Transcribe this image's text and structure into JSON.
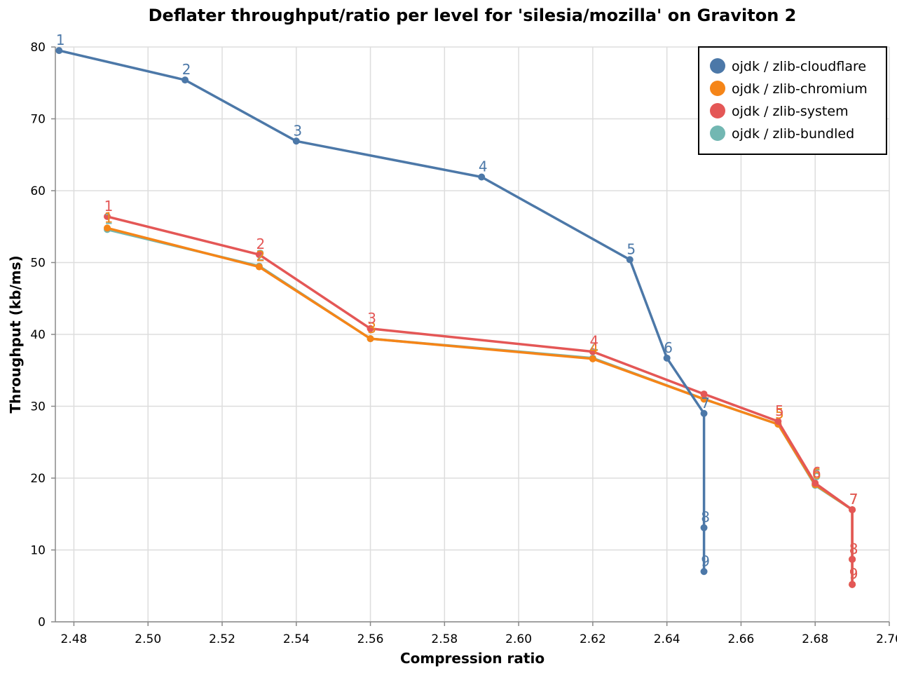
{
  "chart_data": {
    "type": "line",
    "title": "Deflater throughput/ratio per level for 'silesia/mozilla' on Graviton 2",
    "xlabel": "Compression ratio",
    "ylabel": "Throughput (kb/ms)",
    "xlim": [
      2.475,
      2.7
    ],
    "ylim": [
      0,
      80
    ],
    "xticks": [
      2.48,
      2.5,
      2.52,
      2.54,
      2.56,
      2.58,
      2.6,
      2.62,
      2.64,
      2.66,
      2.68,
      2.7
    ],
    "xtick_labels": [
      "2.48",
      "2.50",
      "2.52",
      "2.54",
      "2.56",
      "2.58",
      "2.60",
      "2.62",
      "2.64",
      "2.66",
      "2.68",
      "2.70"
    ],
    "yticks": [
      0,
      10,
      20,
      30,
      40,
      50,
      60,
      70,
      80
    ],
    "ytick_labels": [
      "0",
      "10",
      "20",
      "30",
      "40",
      "50",
      "60",
      "70",
      "80"
    ],
    "grid": true,
    "legend_position": "top-right",
    "series": [
      {
        "name": "ojdk / zlib-bundled",
        "color": "#72b7b2",
        "x": [
          2.489,
          2.53,
          2.56,
          2.62,
          2.65,
          2.67,
          2.68,
          2.69,
          2.69,
          2.69
        ],
        "y": [
          54.6,
          49.5,
          39.4,
          36.7,
          31.0,
          27.5,
          19.0,
          15.6,
          8.7,
          5.2
        ],
        "labels": [
          "1",
          "2",
          "3",
          "4",
          "",
          "5",
          "6",
          "7",
          "8",
          "9"
        ]
      },
      {
        "name": "ojdk / zlib-chromium",
        "color": "#f58518",
        "x": [
          2.489,
          2.53,
          2.56,
          2.62,
          2.65,
          2.67,
          2.68,
          2.69,
          2.69,
          2.69
        ],
        "y": [
          54.8,
          49.4,
          39.4,
          36.6,
          31.0,
          27.5,
          19.1,
          15.6,
          8.7,
          5.2
        ],
        "labels": [
          "1",
          "2",
          "3",
          "4",
          "",
          "5",
          "6",
          "7",
          "8",
          "9"
        ]
      },
      {
        "name": "ojdk / zlib-system",
        "color": "#e45756",
        "x": [
          2.489,
          2.53,
          2.56,
          2.62,
          2.65,
          2.67,
          2.68,
          2.69,
          2.69,
          2.69
        ],
        "y": [
          56.4,
          51.1,
          40.8,
          37.6,
          31.7,
          27.9,
          19.3,
          15.6,
          8.7,
          5.2
        ],
        "labels": [
          "1",
          "2",
          "3",
          "4",
          "",
          "5",
          "6",
          "7",
          "8",
          "9"
        ]
      },
      {
        "name": "ojdk / zlib-cloudflare",
        "color": "#4c78a8",
        "x": [
          2.476,
          2.51,
          2.54,
          2.59,
          2.63,
          2.64,
          2.65,
          2.65,
          2.65
        ],
        "y": [
          79.5,
          75.4,
          66.9,
          61.9,
          50.4,
          36.7,
          29.0,
          13.1,
          7.0
        ],
        "labels": [
          "1",
          "2",
          "3",
          "4",
          "5",
          "6",
          "7",
          "8",
          "9"
        ]
      }
    ],
    "legend_order": [
      "ojdk / zlib-cloudflare",
      "ojdk / zlib-chromium",
      "ojdk / zlib-system",
      "ojdk / zlib-bundled"
    ]
  }
}
